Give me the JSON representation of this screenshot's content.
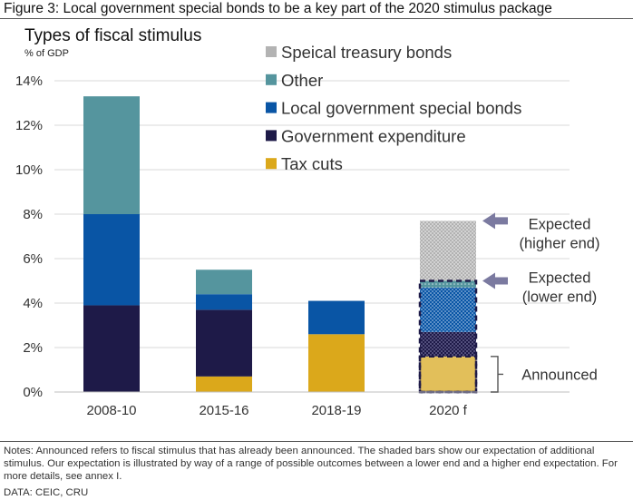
{
  "figure_title": "Figure 3: Local government special bonds to be a key part of the 2020 stimulus package",
  "notes": "Notes: Announced refers to fiscal stimulus that has already been announced. The shaded bars show our expectation of additional stimulus. Our expectation is illustrated by way of a range of possible outcomes between a lower end and a higher end expectation. For more details, see annex I.",
  "source": "DATA: CEIC, CRU",
  "colors": {
    "tax_cuts": "#DBA81B",
    "government_expenditure": "#1E1A48",
    "local_government_special_bonds": "#0955A5",
    "other": "#55959E",
    "special_treasury_bonds": "#B3B3B3",
    "arrow": "#7B7AA0",
    "grid": "#D9D9D9"
  },
  "chart_data": {
    "type": "bar",
    "stacked": true,
    "title": "Types of fiscal stimulus",
    "ylabel": "% of GDP",
    "ylim": [
      0,
      14
    ],
    "yticks": [
      "0%",
      "2%",
      "4%",
      "6%",
      "8%",
      "10%",
      "12%",
      "14%"
    ],
    "grid": true,
    "legend_position": "top-right",
    "categories": [
      "2008-10",
      "2015-16",
      "2018-19",
      "2020 f"
    ],
    "series": [
      {
        "name": "Tax cuts",
        "color_key": "tax_cuts",
        "values": [
          0,
          0.7,
          2.6,
          1.6
        ]
      },
      {
        "name": "Government expenditure",
        "color_key": "government_expenditure",
        "values": [
          3.9,
          3.0,
          0,
          1.1
        ]
      },
      {
        "name": "Local government special bonds",
        "color_key": "local_government_special_bonds",
        "values": [
          4.1,
          0.7,
          1.5,
          2.0
        ]
      },
      {
        "name": "Other",
        "color_key": "other",
        "values": [
          5.3,
          1.1,
          0,
          0.3
        ]
      },
      {
        "name": "Speical treasury bonds",
        "color_key": "special_treasury_bonds",
        "values": [
          0,
          0,
          0,
          2.7
        ]
      }
    ],
    "legend_order": [
      "Speical treasury bonds",
      "Other",
      "Local government special bonds",
      "Government expenditure",
      "Tax cuts"
    ],
    "annotations": [
      {
        "text_lines": [
          "Expected",
          "(higher end)"
        ],
        "value": 7.7,
        "marker": "arrow"
      },
      {
        "text_lines": [
          "Expected",
          "(lower end)"
        ],
        "value": 5.0,
        "marker": "arrow"
      },
      {
        "text_lines": [
          "Announced"
        ],
        "value": 1.6,
        "marker": "bracket"
      }
    ]
  }
}
